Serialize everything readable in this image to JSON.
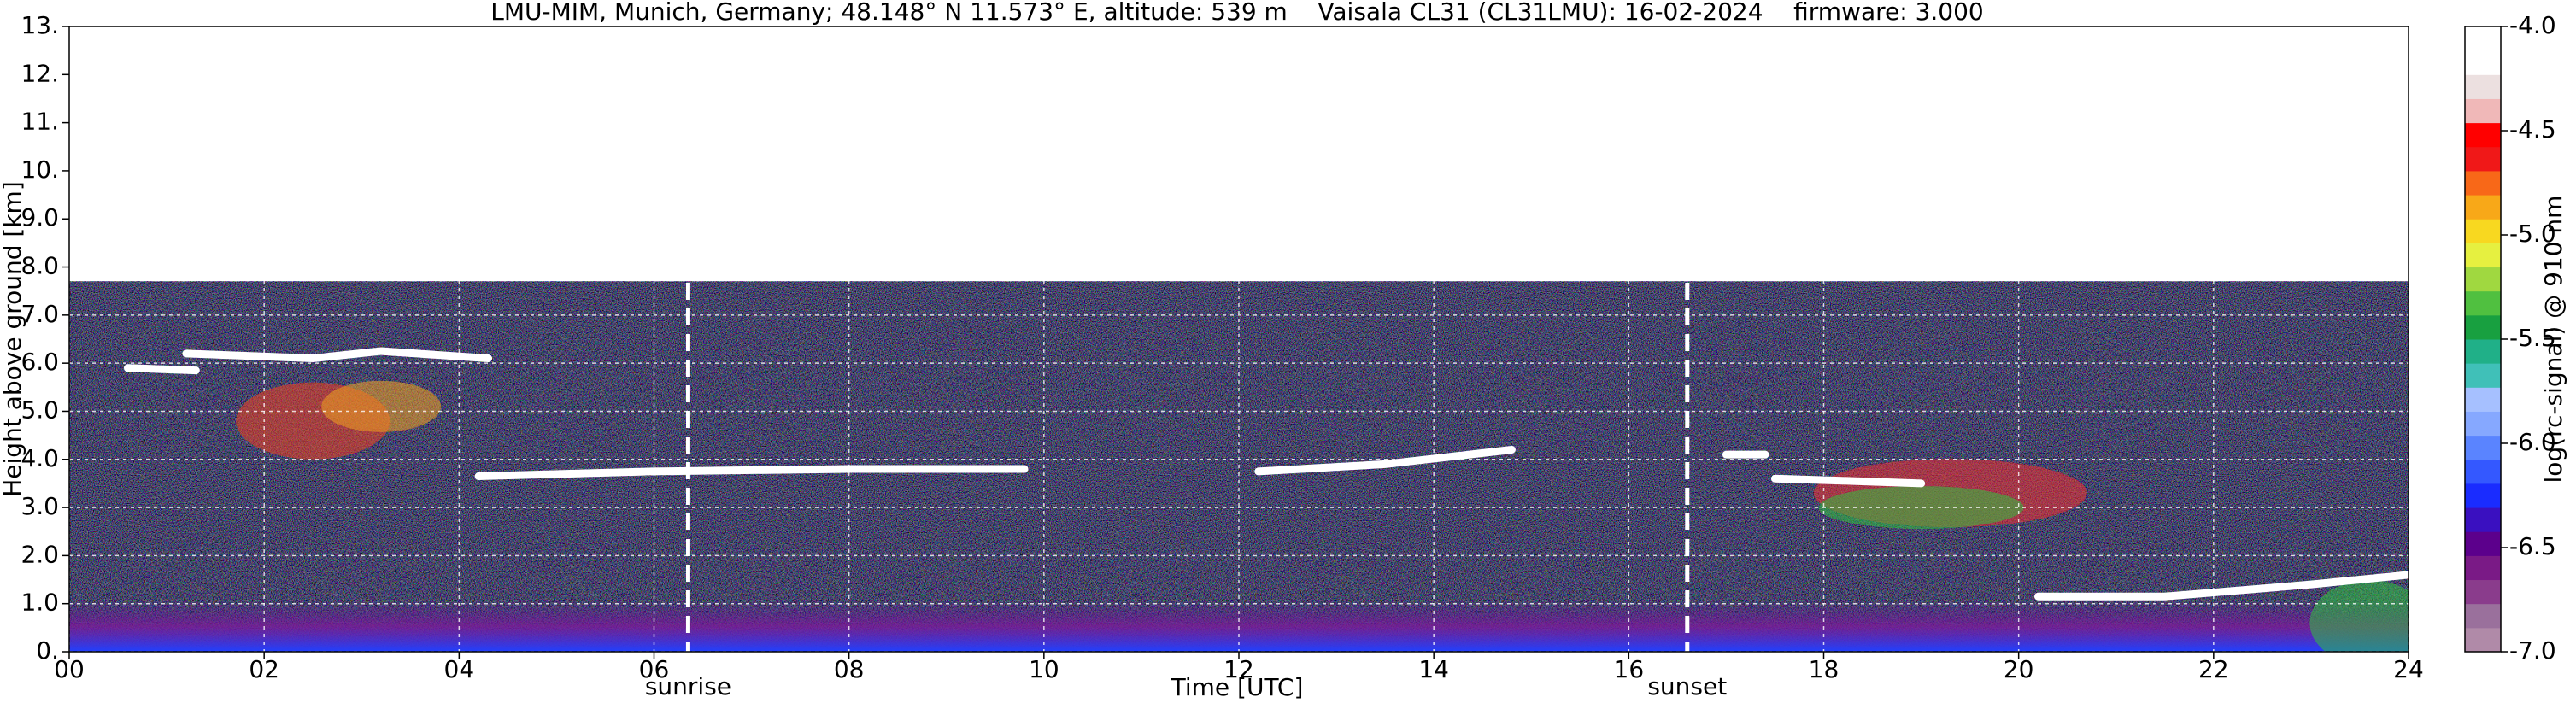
{
  "chart_data": {
    "type": "heatmap",
    "title": "LMU-MIM, Munich, Germany; 48.148° N 11.573° E, altitude: 539 m    Vaisala CL31 (CL31LMU): 16-02-2024    firmware: 3.000",
    "x_label": "Time [UTC]",
    "y_label": "Height above ground [km]",
    "colorbar_label": "log(rc-signal) @ 910 nm",
    "xlim": [
      0,
      24
    ],
    "xticks": [
      {
        "value": 0,
        "label": "00"
      },
      {
        "value": 2,
        "label": "02"
      },
      {
        "value": 4,
        "label": "04"
      },
      {
        "value": 6,
        "label": "06"
      },
      {
        "value": 8,
        "label": "08"
      },
      10,
      12,
      14,
      16,
      18,
      20,
      22,
      24
    ],
    "ylim": [
      0,
      13
    ],
    "yticks": [
      {
        "value": 0,
        "label": "0."
      },
      {
        "value": 1,
        "label": "1.0"
      },
      {
        "value": 2,
        "label": "2.0"
      },
      {
        "value": 3,
        "label": "3.0"
      },
      {
        "value": 4,
        "label": "4.0"
      },
      {
        "value": 5,
        "label": "5.0"
      },
      {
        "value": 6,
        "label": "6.0"
      },
      {
        "value": 7,
        "label": "7.0"
      },
      {
        "value": 8,
        "label": "8.0"
      },
      {
        "value": 9,
        "label": "9.0"
      },
      {
        "value": 10,
        "label": "10."
      },
      {
        "value": 11,
        "label": "11."
      },
      {
        "value": 12,
        "label": "12."
      },
      {
        "value": 13,
        "label": "13."
      }
    ],
    "grid": true,
    "range_max": 7.7,
    "clim": [
      -7,
      -4
    ],
    "cticks": [
      {
        "value": -7,
        "label": "-7.0"
      },
      {
        "value": -6.5,
        "label": "-6.5"
      },
      {
        "value": -6,
        "label": "-6.0"
      },
      {
        "value": -5.5,
        "label": "-5.5"
      },
      {
        "value": -5,
        "label": "-5.0"
      },
      {
        "value": -4.5,
        "label": "-4.5"
      },
      {
        "value": -4,
        "label": "-4.0"
      }
    ],
    "colorscale": [
      "#b08aa8",
      "#9a709c",
      "#8a3c8c",
      "#7a1a86",
      "#5c008c",
      "#3a10c0",
      "#1a2cff",
      "#3458ff",
      "#5a84ff",
      "#86a8ff",
      "#a6c0ff",
      "#40c0b8",
      "#20b088",
      "#18a040",
      "#50c040",
      "#a0d840",
      "#e6f040",
      "#f8d820",
      "#f8a818",
      "#f86818",
      "#f01818",
      "#ff0000",
      "#f0b8b8",
      "#ece0e0",
      "#ffffff",
      "#ffffff"
    ],
    "series": [
      {
        "color": "#ffffff",
        "x": [
          0.6,
          1.3,
          null,
          1.2,
          2.5,
          3.2,
          4.3,
          null,
          4.2,
          6.0,
          8.0,
          9.8,
          null,
          12.2,
          13.5,
          14.8,
          null,
          17.0,
          17.4,
          null,
          17.5,
          18.3,
          19.0,
          null,
          20.2,
          21.5,
          23.0,
          24.0
        ],
        "values": [
          5.9,
          5.85,
          null,
          6.2,
          6.1,
          6.25,
          6.1,
          null,
          3.65,
          3.75,
          3.8,
          3.8,
          null,
          3.75,
          3.9,
          4.2,
          null,
          4.1,
          4.1,
          null,
          3.6,
          3.55,
          3.5,
          null,
          1.15,
          1.15,
          1.4,
          1.6
        ]
      }
    ],
    "annotations": [
      {
        "label": "sunrise",
        "x": 6.35
      },
      {
        "label": "sunset",
        "x": 16.6
      }
    ]
  }
}
